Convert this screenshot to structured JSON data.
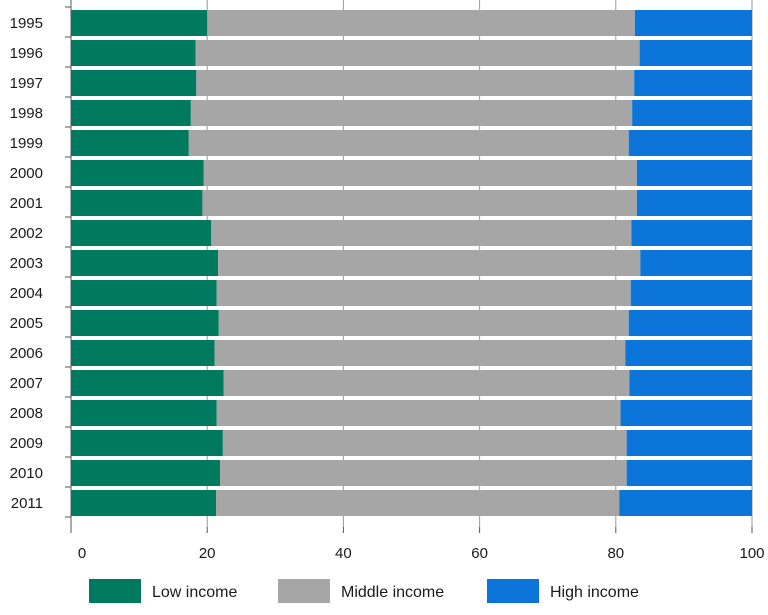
{
  "chart_data": {
    "type": "bar",
    "orientation": "horizontal",
    "stacked": true,
    "categories": [
      "1995",
      "1996",
      "1997",
      "1998",
      "1999",
      "2000",
      "2001",
      "2002",
      "2003",
      "2004",
      "2005",
      "2006",
      "2007",
      "2008",
      "2009",
      "2010",
      "2011"
    ],
    "series": [
      {
        "name": "Low income",
        "color": "#007a5e",
        "values": [
          20.0,
          18.3,
          18.4,
          17.6,
          17.3,
          19.5,
          19.3,
          20.6,
          21.6,
          21.4,
          21.7,
          21.1,
          22.4,
          21.4,
          22.3,
          21.9,
          21.3
        ]
      },
      {
        "name": "Middle income",
        "color": "#a6a6a6",
        "values": [
          62.8,
          65.2,
          64.3,
          64.8,
          64.6,
          63.6,
          63.8,
          61.7,
          62.0,
          60.8,
          60.2,
          60.3,
          59.6,
          59.3,
          59.3,
          59.7,
          59.2
        ]
      },
      {
        "name": "High income",
        "color": "#0b75d9",
        "values": [
          17.2,
          16.5,
          17.3,
          17.6,
          18.1,
          16.9,
          16.9,
          17.7,
          16.4,
          17.8,
          18.1,
          18.6,
          18.0,
          19.3,
          18.4,
          18.4,
          19.5
        ]
      }
    ],
    "xlim": [
      0,
      100
    ],
    "xticks": [
      "0",
      "20",
      "40",
      "60",
      "80",
      "100"
    ],
    "grid": true,
    "legend_position": "bottom"
  }
}
